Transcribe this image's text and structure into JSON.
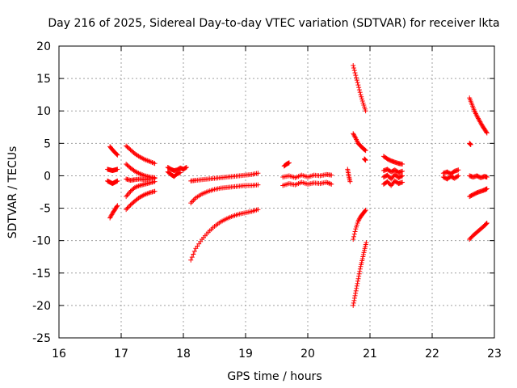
{
  "chart_data": {
    "type": "scatter",
    "title": "Day 216 of 2025, Sidereal Day-to-day VTEC variation (SDTVAR) for receiver lkta",
    "xlabel": "GPS time / hours",
    "ylabel": "SDTVAR / TECUs",
    "xlim": [
      16,
      23
    ],
    "ylim": [
      -25,
      20
    ],
    "xticks": [
      "16",
      "17",
      "18",
      "19",
      "20",
      "21",
      "22",
      "23"
    ],
    "yticks": [
      "20",
      "15",
      "10",
      "5",
      "0",
      "-5",
      "-10",
      "-15",
      "-20",
      "-25"
    ],
    "grid": true,
    "marker": "plus",
    "color": "#ff0000",
    "series": [
      {
        "name": "seg01",
        "x": [
          16.82,
          16.86,
          16.9,
          16.94
        ],
        "y": [
          4.5,
          4.0,
          3.6,
          3.2
        ]
      },
      {
        "name": "seg02",
        "x": [
          16.78,
          16.82,
          16.86,
          16.9,
          16.94
        ],
        "y": [
          1.0,
          0.9,
          0.8,
          0.9,
          1.0
        ]
      },
      {
        "name": "seg03",
        "x": [
          16.78,
          16.82,
          16.86,
          16.9,
          16.94
        ],
        "y": [
          -0.8,
          -1.0,
          -1.2,
          -1.0,
          -0.8
        ]
      },
      {
        "name": "seg04",
        "x": [
          16.82,
          16.86,
          16.9,
          16.94
        ],
        "y": [
          -6.5,
          -5.8,
          -5.2,
          -4.6
        ]
      },
      {
        "name": "seg05",
        "x": [
          17.08,
          17.15,
          17.22,
          17.3,
          17.38,
          17.46,
          17.54
        ],
        "y": [
          4.6,
          4.0,
          3.4,
          2.9,
          2.5,
          2.2,
          1.9
        ]
      },
      {
        "name": "seg06",
        "x": [
          17.08,
          17.15,
          17.22,
          17.3,
          17.38,
          17.46,
          17.54
        ],
        "y": [
          1.8,
          1.2,
          0.7,
          0.3,
          0.0,
          -0.2,
          -0.3
        ]
      },
      {
        "name": "seg07",
        "x": [
          17.08,
          17.15,
          17.22,
          17.3,
          17.38,
          17.46,
          17.54
        ],
        "y": [
          -0.5,
          -0.7,
          -0.6,
          -0.5,
          -0.6,
          -0.5,
          -0.4
        ]
      },
      {
        "name": "seg08",
        "x": [
          17.08,
          17.15,
          17.22,
          17.3,
          17.38,
          17.46,
          17.54
        ],
        "y": [
          -3.2,
          -2.4,
          -1.8,
          -1.5,
          -1.3,
          -1.1,
          -0.9
        ]
      },
      {
        "name": "seg09",
        "x": [
          17.08,
          17.15,
          17.22,
          17.3,
          17.38,
          17.46,
          17.54
        ],
        "y": [
          -5.2,
          -4.5,
          -3.9,
          -3.3,
          -2.9,
          -2.6,
          -2.4
        ]
      },
      {
        "name": "seg10",
        "x": [
          17.75,
          17.8,
          17.85,
          17.9,
          17.95,
          18.0,
          18.05
        ],
        "y": [
          1.3,
          1.0,
          0.8,
          0.9,
          1.2,
          1.0,
          1.3
        ]
      },
      {
        "name": "seg11",
        "x": [
          17.75,
          17.8,
          17.85,
          17.9,
          17.95
        ],
        "y": [
          0.6,
          0.2,
          -0.1,
          0.3,
          0.5
        ]
      },
      {
        "name": "seg12",
        "x": [
          18.12,
          18.2,
          18.3,
          18.4,
          18.5,
          18.6,
          18.7,
          18.8,
          18.9,
          19.0,
          19.1,
          19.2
        ],
        "y": [
          -0.8,
          -0.7,
          -0.6,
          -0.5,
          -0.4,
          -0.3,
          -0.2,
          -0.1,
          0.0,
          0.1,
          0.2,
          0.4
        ]
      },
      {
        "name": "seg13",
        "x": [
          18.12,
          18.2,
          18.3,
          18.4,
          18.5,
          18.6,
          18.7,
          18.8,
          18.9,
          19.0,
          19.1,
          19.2
        ],
        "y": [
          -4.2,
          -3.4,
          -2.8,
          -2.4,
          -2.1,
          -1.9,
          -1.8,
          -1.7,
          -1.6,
          -1.5,
          -1.5,
          -1.4
        ]
      },
      {
        "name": "seg14",
        "x": [
          18.12,
          18.2,
          18.3,
          18.4,
          18.5,
          18.6,
          18.7,
          18.8,
          18.9,
          19.0,
          19.1,
          19.2
        ],
        "y": [
          -13.0,
          -11.2,
          -9.8,
          -8.7,
          -7.8,
          -7.1,
          -6.6,
          -6.2,
          -5.9,
          -5.7,
          -5.5,
          -5.2
        ]
      },
      {
        "name": "seg15",
        "x": [
          19.62,
          19.66,
          19.7
        ],
        "y": [
          1.5,
          1.8,
          2.0
        ]
      },
      {
        "name": "seg16",
        "x": [
          19.6,
          19.7,
          19.8,
          19.9,
          20.0,
          20.1,
          20.2,
          20.3,
          20.38
        ],
        "y": [
          -0.2,
          0.0,
          -0.3,
          0.1,
          -0.2,
          0.1,
          0.0,
          0.2,
          0.1
        ]
      },
      {
        "name": "seg17",
        "x": [
          19.6,
          19.7,
          19.8,
          19.9,
          20.0,
          20.1,
          20.2,
          20.3,
          20.38
        ],
        "y": [
          -1.5,
          -1.2,
          -1.4,
          -1.0,
          -1.3,
          -1.1,
          -1.2,
          -1.0,
          -1.3
        ]
      },
      {
        "name": "seg18",
        "x": [
          20.64,
          20.66,
          20.68
        ],
        "y": [
          1.0,
          0.0,
          -0.9
        ]
      },
      {
        "name": "seg19",
        "x": [
          20.73,
          20.77,
          20.81,
          20.85,
          20.89,
          20.93
        ],
        "y": [
          17.0,
          15.5,
          14.0,
          12.5,
          11.2,
          10.0
        ]
      },
      {
        "name": "seg20",
        "x": [
          20.73,
          20.77,
          20.81,
          20.85,
          20.89,
          20.93
        ],
        "y": [
          6.5,
          5.8,
          5.0,
          4.6,
          4.2,
          3.9
        ]
      },
      {
        "name": "seg21",
        "x": [
          20.91,
          20.93
        ],
        "y": [
          2.6,
          2.4
        ]
      },
      {
        "name": "seg22",
        "x": [
          20.73,
          20.77,
          20.81,
          20.85,
          20.89,
          20.93
        ],
        "y": [
          -9.8,
          -8.2,
          -7.0,
          -6.3,
          -5.8,
          -5.3
        ]
      },
      {
        "name": "seg23",
        "x": [
          20.73,
          20.76,
          20.79,
          20.82,
          20.85,
          20.88,
          20.91,
          20.94
        ],
        "y": [
          -20.0,
          -18.5,
          -17.0,
          -15.5,
          -14.0,
          -12.8,
          -11.5,
          -10.3
        ]
      },
      {
        "name": "seg24",
        "x": [
          21.22,
          21.28,
          21.34,
          21.4,
          21.46,
          21.52
        ],
        "y": [
          3.0,
          2.6,
          2.3,
          2.1,
          1.9,
          1.8
        ]
      },
      {
        "name": "seg25",
        "x": [
          21.22,
          21.28,
          21.34,
          21.4,
          21.46,
          21.52
        ],
        "y": [
          0.8,
          1.0,
          0.6,
          0.9,
          0.5,
          0.7
        ]
      },
      {
        "name": "seg26",
        "x": [
          21.22,
          21.28,
          21.34,
          21.4,
          21.46,
          21.52
        ],
        "y": [
          -0.2,
          0.1,
          -0.5,
          0.2,
          -0.3,
          0.0
        ]
      },
      {
        "name": "seg27",
        "x": [
          21.22,
          21.28,
          21.34,
          21.4,
          21.46,
          21.52
        ],
        "y": [
          -1.3,
          -0.9,
          -1.5,
          -0.8,
          -1.2,
          -1.0
        ]
      },
      {
        "name": "seg28",
        "x": [
          22.18,
          22.24,
          22.3,
          22.36,
          22.42
        ],
        "y": [
          0.4,
          0.6,
          0.3,
          0.7,
          0.9
        ]
      },
      {
        "name": "seg29",
        "x": [
          22.18,
          22.24,
          22.3,
          22.36,
          22.42
        ],
        "y": [
          -0.2,
          -0.5,
          -0.1,
          -0.4,
          0.0
        ]
      },
      {
        "name": "seg30",
        "x": [
          22.6,
          22.64,
          22.68,
          22.72,
          22.76,
          22.8,
          22.84,
          22.88
        ],
        "y": [
          12.0,
          11.0,
          10.0,
          9.2,
          8.5,
          7.8,
          7.2,
          6.6
        ]
      },
      {
        "name": "seg31",
        "x": [
          22.6,
          22.62
        ],
        "y": [
          5.0,
          4.8
        ]
      },
      {
        "name": "seg32",
        "x": [
          22.6,
          22.66,
          22.72,
          22.78,
          22.84,
          22.88
        ],
        "y": [
          0.0,
          -0.2,
          0.0,
          -0.3,
          -0.1,
          -0.2
        ]
      },
      {
        "name": "seg33",
        "x": [
          22.6,
          22.66,
          22.72,
          22.78,
          22.84,
          22.88
        ],
        "y": [
          -3.2,
          -2.9,
          -2.6,
          -2.4,
          -2.2,
          -2.0
        ]
      },
      {
        "name": "seg34",
        "x": [
          22.6,
          22.66,
          22.72,
          22.78,
          22.84,
          22.88
        ],
        "y": [
          -9.8,
          -9.2,
          -8.7,
          -8.2,
          -7.7,
          -7.3
        ]
      }
    ]
  }
}
